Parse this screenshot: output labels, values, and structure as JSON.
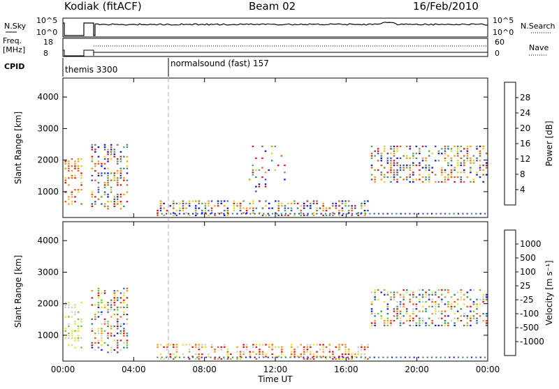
{
  "header": {
    "station": "Kodiak (fitACF)",
    "beam": "Beam 02",
    "date": "16/Feb/2010"
  },
  "status_panels": {
    "nsky_label": "N.Sky",
    "nsearch_label": "N.Search",
    "noise_ticks": [
      "10^5",
      "10^0"
    ],
    "freq_label_line1": "Freq.",
    "freq_label_line2": "[MHz]",
    "freq_ticks": [
      "18",
      "8"
    ],
    "nave_label": "Nave",
    "nave_ticks": [
      "60",
      "0"
    ],
    "cpid_label": "CPID",
    "cpid_modes": [
      {
        "name": "themis 3300",
        "start_hour": 0
      },
      {
        "name": "normalsound (fast) 157",
        "start_hour": 6
      }
    ]
  },
  "colors": {
    "power_scale": [
      "#1010e0",
      "#2a50b8",
      "#3f7f85",
      "#62a05a",
      "#e0d020",
      "#f09a10",
      "#e45a10",
      "#e01010"
    ],
    "velocity_scale": [
      "#1a1ae0",
      "#2e6fb2",
      "#3f8a5e",
      "#6cc23a",
      "#cccccc",
      "#f2e018",
      "#f09a10",
      "#e8580e",
      "#e01010"
    ]
  },
  "chart_data": [
    {
      "type": "heatmap",
      "name": "Power",
      "xlabel": "Time UT",
      "ylabel": "Slant Range [km]",
      "x_ticks": [
        "00:00",
        "04:00",
        "08:00",
        "12:00",
        "16:00",
        "20:00",
        "00:00"
      ],
      "y_ticks": [
        1000,
        2000,
        3000,
        4000
      ],
      "xlim": [
        0,
        24
      ],
      "ylim": [
        180,
        4600
      ],
      "colorbar": {
        "label": "Power [dB]",
        "ticks": [
          4,
          8,
          12,
          16,
          20,
          24,
          28
        ],
        "range": [
          0,
          32
        ]
      },
      "echo_regions": [
        {
          "t0": 0.1,
          "t1": 1.1,
          "r0": 600,
          "r1": 2100,
          "level": "high"
        },
        {
          "t0": 1.6,
          "t1": 3.6,
          "r0": 450,
          "r1": 2500,
          "level": "mixed"
        },
        {
          "t0": 5.3,
          "t1": 17.2,
          "r0": 240,
          "r1": 700,
          "level": "mixed"
        },
        {
          "t0": 17.4,
          "t1": 24.0,
          "r0": 1300,
          "r1": 2500,
          "level": "mixed"
        },
        {
          "t0": 10.5,
          "t1": 12.5,
          "r0": 1000,
          "r1": 2500,
          "level": "low"
        }
      ]
    },
    {
      "type": "heatmap",
      "name": "Velocity",
      "xlabel": "Time UT",
      "ylabel": "Slant Range [km]",
      "x_ticks": [
        "00:00",
        "04:00",
        "08:00",
        "12:00",
        "16:00",
        "20:00",
        "00:00"
      ],
      "y_ticks": [
        1000,
        2000,
        3000,
        4000
      ],
      "xlim": [
        0,
        24
      ],
      "ylim": [
        180,
        4600
      ],
      "colorbar": {
        "label": "Velocity [m s⁻¹]",
        "ticks": [
          1000,
          500,
          100,
          25,
          -25,
          -100,
          -500,
          -1000
        ]
      },
      "echo_regions": [
        {
          "t0": 0.1,
          "t1": 1.1,
          "r0": 600,
          "r1": 2100,
          "level": "low_velocity"
        },
        {
          "t0": 1.6,
          "t1": 3.6,
          "r0": 450,
          "r1": 2500,
          "level": "mixed"
        },
        {
          "t0": 5.3,
          "t1": 17.2,
          "r0": 240,
          "r1": 700,
          "level": "negative"
        },
        {
          "t0": 17.4,
          "t1": 24.0,
          "r0": 1300,
          "r1": 2500,
          "level": "mixed"
        }
      ]
    }
  ]
}
